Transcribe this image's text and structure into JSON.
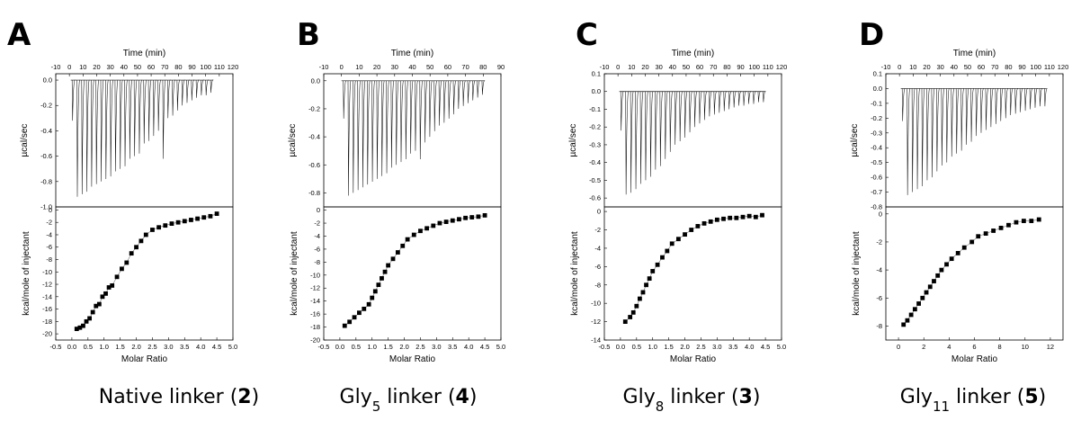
{
  "chart_data": [
    {
      "type": "scatter",
      "panel_label": "A",
      "caption": {
        "prefix": "Native linker (",
        "bold": "2",
        "suffix": ")",
        "sub": ""
      },
      "top": {
        "xlabel": "Time (min)",
        "ylabel": "µcal/sec",
        "xlim": [
          -10,
          120
        ],
        "ylim": [
          -1.0,
          0.05
        ],
        "xticks": [
          -10,
          0,
          10,
          20,
          30,
          40,
          50,
          60,
          70,
          80,
          90,
          100,
          110,
          120
        ],
        "yticks": [
          0.0,
          -0.2,
          -0.4,
          -0.6,
          -0.8,
          -1.0
        ],
        "ytick_labels": [
          "0.0",
          "-0.2",
          "-0.4",
          "-0.6",
          "-0.8",
          "-1.0"
        ],
        "injections": 30,
        "first_time": 2,
        "interval": 3.5,
        "peak_depths": [
          0.32,
          0.92,
          0.9,
          0.88,
          0.84,
          0.82,
          0.8,
          0.78,
          0.76,
          0.72,
          0.7,
          0.68,
          0.62,
          0.6,
          0.58,
          0.5,
          0.48,
          0.44,
          0.4,
          0.62,
          0.3,
          0.28,
          0.24,
          0.2,
          0.18,
          0.16,
          0.14,
          0.12,
          0.12,
          0.1
        ]
      },
      "bottom": {
        "xlabel": "Molar Ratio",
        "ylabel": "kcal/mole of injectant",
        "xlim": [
          -0.5,
          5.0
        ],
        "ylim": [
          -21,
          0.5
        ],
        "xticks": [
          -0.5,
          0.0,
          0.5,
          1.0,
          1.5,
          2.0,
          2.5,
          3.0,
          3.5,
          4.0,
          4.5,
          5.0
        ],
        "xtick_labels": [
          "-0.5",
          "0.0",
          "0.5",
          "1.0",
          "1.5",
          "2.0",
          "2.5",
          "3.0",
          "3.5",
          "4.0",
          "4.5",
          "5.0"
        ],
        "yticks": [
          0,
          -2,
          -4,
          -6,
          -8,
          -10,
          -12,
          -14,
          -16,
          -18,
          -20
        ],
        "x": [
          0.15,
          0.25,
          0.35,
          0.45,
          0.55,
          0.65,
          0.75,
          0.85,
          0.95,
          1.05,
          1.15,
          1.25,
          1.4,
          1.55,
          1.7,
          1.85,
          2.0,
          2.15,
          2.3,
          2.5,
          2.7,
          2.9,
          3.1,
          3.3,
          3.5,
          3.7,
          3.9,
          4.1,
          4.3,
          4.5
        ],
        "y": [
          -19.2,
          -19.0,
          -18.7,
          -18.0,
          -17.5,
          -16.5,
          -15.5,
          -15.2,
          -14.0,
          -13.5,
          -12.5,
          -12.2,
          -10.8,
          -9.5,
          -8.5,
          -7.0,
          -6.0,
          -5.0,
          -4.0,
          -3.2,
          -2.8,
          -2.5,
          -2.2,
          -2.0,
          -1.8,
          -1.6,
          -1.4,
          -1.2,
          -1.0,
          -0.6
        ]
      }
    },
    {
      "type": "scatter",
      "panel_label": "B",
      "caption": {
        "prefix": "Gly",
        "sub": "5",
        "mid": " linker (",
        "bold": "4",
        "suffix": ")"
      },
      "top": {
        "xlabel": "Time (min)",
        "ylabel": "µcal/sec",
        "xlim": [
          -10,
          90
        ],
        "ylim": [
          -0.9,
          0.05
        ],
        "xticks": [
          -10,
          0,
          10,
          20,
          30,
          40,
          50,
          60,
          70,
          80,
          90
        ],
        "yticks": [
          0.0,
          -0.2,
          -0.4,
          -0.6,
          -0.8
        ],
        "ytick_labels": [
          "0.0",
          "-0.2",
          "-0.4",
          "-0.6",
          "-0.8"
        ],
        "injections": 30,
        "first_time": 1,
        "interval": 2.7,
        "peak_depths": [
          0.27,
          0.82,
          0.8,
          0.78,
          0.76,
          0.74,
          0.72,
          0.7,
          0.68,
          0.66,
          0.62,
          0.6,
          0.58,
          0.56,
          0.52,
          0.5,
          0.56,
          0.44,
          0.4,
          0.36,
          0.32,
          0.3,
          0.27,
          0.24,
          0.2,
          0.18,
          0.16,
          0.14,
          0.12,
          0.1
        ]
      },
      "bottom": {
        "xlabel": "Molar Ratio",
        "ylabel": "kcal/mole of injectant",
        "xlim": [
          -0.5,
          5.0
        ],
        "ylim": [
          -20,
          0.5
        ],
        "xticks": [
          -0.5,
          0.0,
          0.5,
          1.0,
          1.5,
          2.0,
          2.5,
          3.0,
          3.5,
          4.0,
          4.5,
          5.0
        ],
        "xtick_labels": [
          "-0.5",
          "0.0",
          "0.5",
          "1.0",
          "1.5",
          "2.0",
          "2.5",
          "3.0",
          "3.5",
          "4.0",
          "4.5",
          "5.0"
        ],
        "yticks": [
          0,
          -2,
          -4,
          -6,
          -8,
          -10,
          -12,
          -14,
          -16,
          -18,
          -20
        ],
        "x": [
          0.15,
          0.3,
          0.45,
          0.6,
          0.75,
          0.9,
          1.0,
          1.1,
          1.2,
          1.3,
          1.4,
          1.5,
          1.65,
          1.8,
          1.95,
          2.1,
          2.3,
          2.5,
          2.7,
          2.9,
          3.1,
          3.3,
          3.5,
          3.7,
          3.9,
          4.1,
          4.3,
          4.5
        ],
        "y": [
          -17.8,
          -17.2,
          -16.5,
          -15.8,
          -15.2,
          -14.5,
          -13.5,
          -12.5,
          -11.5,
          -10.5,
          -9.5,
          -8.5,
          -7.5,
          -6.5,
          -5.5,
          -4.5,
          -3.8,
          -3.2,
          -2.8,
          -2.4,
          -2.0,
          -1.8,
          -1.6,
          -1.4,
          -1.2,
          -1.1,
          -1.0,
          -0.8
        ]
      }
    },
    {
      "type": "scatter",
      "panel_label": "C",
      "caption": {
        "prefix": "Gly",
        "sub": "8",
        "mid": " linker (",
        "bold": "3",
        "suffix": ")"
      },
      "top": {
        "xlabel": "Time (min)",
        "ylabel": "µcal/sec",
        "xlim": [
          -10,
          120
        ],
        "ylim": [
          -0.65,
          0.1
        ],
        "xticks": [
          -10,
          0,
          10,
          20,
          30,
          40,
          50,
          60,
          70,
          80,
          90,
          100,
          110,
          120
        ],
        "yticks": [
          0.1,
          0.0,
          -0.1,
          -0.2,
          -0.3,
          -0.4,
          -0.5,
          -0.6
        ],
        "ytick_labels": [
          "0.1",
          "0.0",
          "-0.1",
          "-0.2",
          "-0.3",
          "-0.4",
          "-0.5",
          "-0.6"
        ],
        "injections": 30,
        "first_time": 2,
        "interval": 3.6,
        "peak_depths": [
          0.22,
          0.58,
          0.57,
          0.55,
          0.52,
          0.5,
          0.48,
          0.44,
          0.42,
          0.38,
          0.34,
          0.3,
          0.28,
          0.26,
          0.23,
          0.2,
          0.18,
          0.16,
          0.14,
          0.13,
          0.12,
          0.11,
          0.1,
          0.09,
          0.08,
          0.08,
          0.07,
          0.07,
          0.06,
          0.06
        ]
      },
      "bottom": {
        "xlabel": "Molar Ratio",
        "ylabel": "kcal/mole of injectant",
        "xlim": [
          -0.5,
          5.0
        ],
        "ylim": [
          -14,
          0.5
        ],
        "xticks": [
          -0.5,
          0.0,
          0.5,
          1.0,
          1.5,
          2.0,
          2.5,
          3.0,
          3.5,
          4.0,
          4.5,
          5.0
        ],
        "xtick_labels": [
          "-0.5",
          "0.0",
          "0.5",
          "1.0",
          "1.5",
          "2.0",
          "2.5",
          "3.0",
          "3.5",
          "4.0",
          "4.5",
          "5.0"
        ],
        "yticks": [
          0,
          -2,
          -4,
          -6,
          -8,
          -10,
          -12,
          -14
        ],
        "x": [
          0.15,
          0.3,
          0.4,
          0.5,
          0.6,
          0.7,
          0.8,
          0.9,
          1.0,
          1.15,
          1.3,
          1.45,
          1.6,
          1.8,
          2.0,
          2.2,
          2.4,
          2.6,
          2.8,
          3.0,
          3.2,
          3.4,
          3.6,
          3.8,
          4.0,
          4.2,
          4.4
        ],
        "y": [
          -12.0,
          -11.5,
          -11.0,
          -10.3,
          -9.5,
          -8.8,
          -8.0,
          -7.3,
          -6.5,
          -5.8,
          -5.0,
          -4.3,
          -3.5,
          -3.0,
          -2.5,
          -2.0,
          -1.6,
          -1.3,
          -1.1,
          -0.9,
          -0.8,
          -0.7,
          -0.7,
          -0.6,
          -0.5,
          -0.6,
          -0.4
        ]
      }
    },
    {
      "type": "scatter",
      "panel_label": "D",
      "caption": {
        "prefix": "Gly",
        "sub": "11",
        "mid": " linker (",
        "bold": "5",
        "suffix": ")"
      },
      "top": {
        "xlabel": "Time (min)",
        "ylabel": "µcal/sec",
        "xlim": [
          -10,
          120
        ],
        "ylim": [
          -0.8,
          0.1
        ],
        "xticks": [
          -10,
          0,
          10,
          20,
          30,
          40,
          50,
          60,
          70,
          80,
          90,
          100,
          110,
          120
        ],
        "yticks": [
          0.1,
          0.0,
          -0.1,
          -0.2,
          -0.3,
          -0.4,
          -0.5,
          -0.6,
          -0.7,
          -0.8
        ],
        "ytick_labels": [
          "0.1",
          "0.0",
          "-0.1",
          "-0.2",
          "-0.3",
          "-0.4",
          "-0.5",
          "-0.6",
          "-0.7",
          "-0.8"
        ],
        "injections": 30,
        "first_time": 2,
        "interval": 3.6,
        "peak_depths": [
          0.22,
          0.72,
          0.7,
          0.68,
          0.66,
          0.62,
          0.6,
          0.56,
          0.52,
          0.5,
          0.46,
          0.44,
          0.42,
          0.38,
          0.36,
          0.32,
          0.3,
          0.28,
          0.26,
          0.24,
          0.22,
          0.2,
          0.18,
          0.17,
          0.16,
          0.15,
          0.14,
          0.13,
          0.12,
          0.12
        ]
      },
      "bottom": {
        "xlabel": "Molar Ratio",
        "ylabel": "kcal/mole of injectant",
        "xlim": [
          -1,
          13
        ],
        "ylim": [
          -9,
          0.5
        ],
        "xticks": [
          0,
          2,
          4,
          6,
          8,
          10,
          12
        ],
        "xtick_labels": [
          "0",
          "2",
          "4",
          "6",
          "8",
          "10",
          "12"
        ],
        "yticks": [
          0,
          -2,
          -4,
          -6,
          -8
        ],
        "x": [
          0.4,
          0.7,
          1.0,
          1.3,
          1.6,
          1.9,
          2.2,
          2.5,
          2.8,
          3.1,
          3.4,
          3.8,
          4.2,
          4.7,
          5.2,
          5.8,
          6.3,
          6.9,
          7.5,
          8.1,
          8.7,
          9.3,
          9.9,
          10.5,
          11.1
        ],
        "y": [
          -7.9,
          -7.6,
          -7.2,
          -6.8,
          -6.4,
          -6.0,
          -5.6,
          -5.2,
          -4.8,
          -4.4,
          -4.0,
          -3.6,
          -3.2,
          -2.8,
          -2.4,
          -2.0,
          -1.6,
          -1.4,
          -1.2,
          -1.0,
          -0.8,
          -0.6,
          -0.5,
          -0.5,
          -0.4
        ]
      }
    }
  ]
}
